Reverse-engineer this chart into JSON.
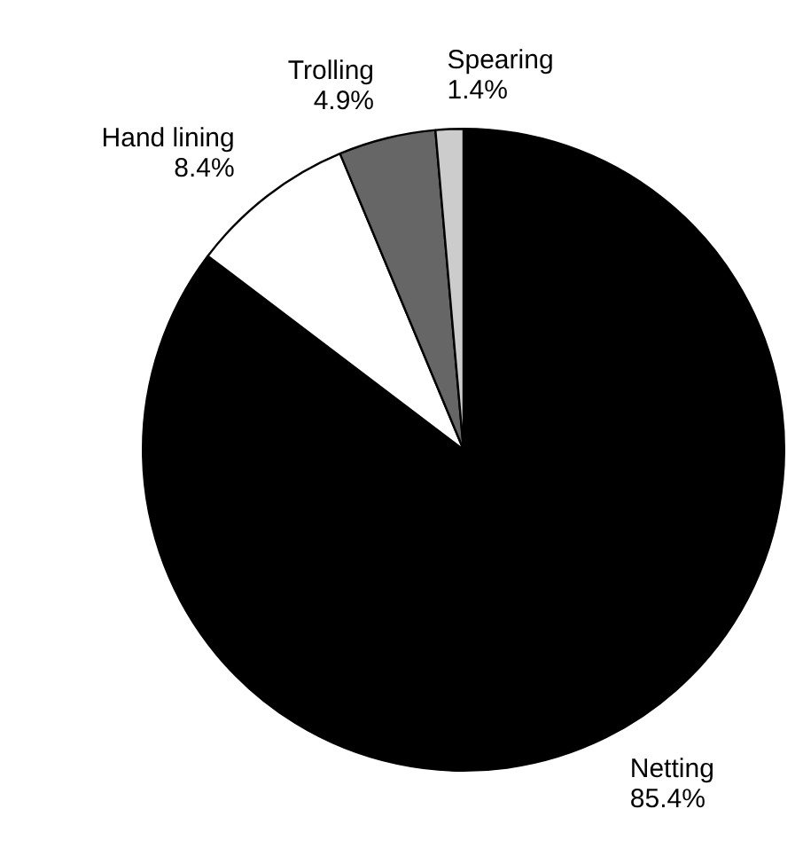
{
  "chart_data": {
    "type": "pie",
    "categories": [
      "Netting",
      "Hand lining",
      "Trolling",
      "Spearing"
    ],
    "values": [
      85.4,
      8.4,
      4.9,
      1.4
    ],
    "value_labels": [
      "85.4%",
      "8.4%",
      "4.9%",
      "1.4%"
    ],
    "colors": [
      "#000000",
      "#ffffff",
      "#666666",
      "#cccccc"
    ],
    "legend": false
  }
}
